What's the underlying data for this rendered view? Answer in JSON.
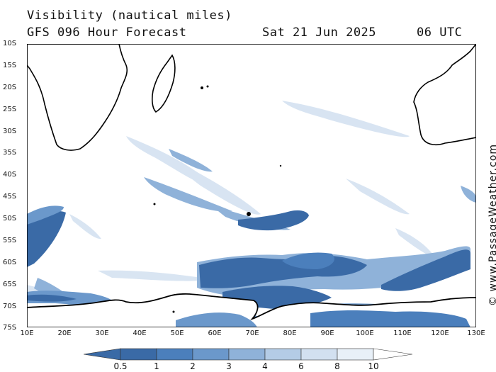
{
  "header": {
    "variable": "Visibility (nautical miles)",
    "model": "GFS 096 Hour Forecast",
    "date": "Sat 21 Jun 2025",
    "time": "06 UTC"
  },
  "axes": {
    "lat_labels": [
      "10S",
      "15S",
      "20S",
      "25S",
      "30S",
      "35S",
      "40S",
      "45S",
      "50S",
      "55S",
      "60S",
      "65S",
      "70S",
      "75S"
    ],
    "lon_labels": [
      "10E",
      "20E",
      "30E",
      "40E",
      "50E",
      "60E",
      "70E",
      "80E",
      "90E",
      "100E",
      "110E",
      "120E",
      "130E"
    ]
  },
  "legend": {
    "ticks": [
      "0.5",
      "1",
      "2",
      "3",
      "4",
      "6",
      "8",
      "10"
    ],
    "colors": [
      "#3a6aa6",
      "#4b7fbc",
      "#6b98cb",
      "#8fb2d9",
      "#b4cce6",
      "#d2e0f0",
      "#e8f0f8",
      "#ffffff"
    ]
  },
  "credit": "© www.PassageWeather.com",
  "colors": {
    "fog_dark": "#3a6aa6",
    "fog_mid": "#6b98cb",
    "fog_light": "#b4cce6",
    "land": "#ffffff",
    "coast": "#000000"
  }
}
